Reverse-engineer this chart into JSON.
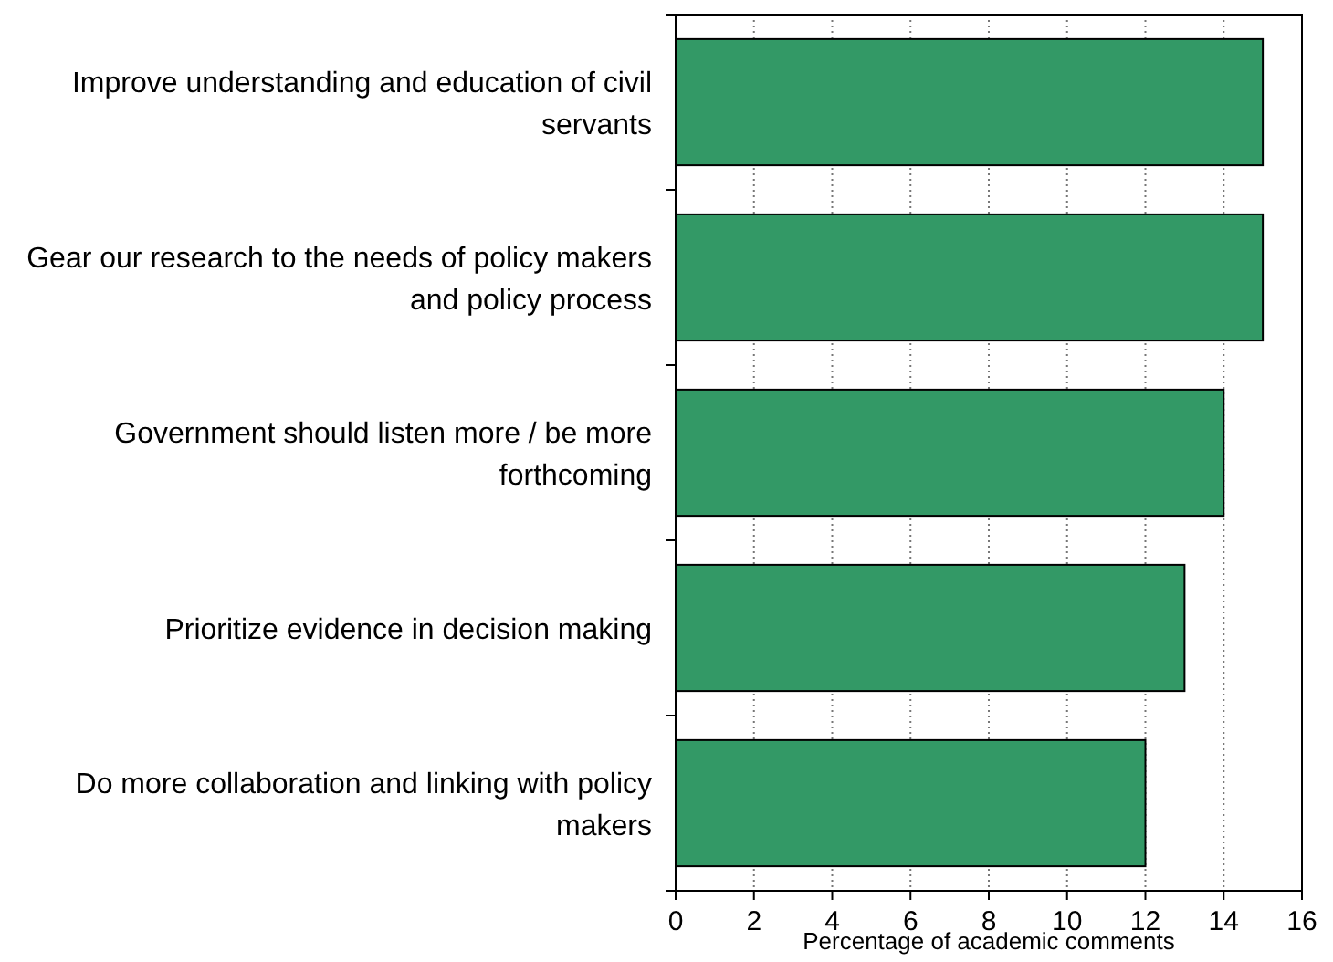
{
  "chart_data": {
    "type": "bar",
    "orientation": "horizontal",
    "xlabel": "Percentage of academic comments",
    "categories": [
      "Improve understanding and education of civil servants",
      "Gear our research to the needs of policy makers and policy process",
      "Government should listen more / be more forthcoming",
      "Prioritize evidence in decision making",
      "Do more collaboration and linking with policy makers"
    ],
    "values": [
      15,
      15,
      14,
      13,
      12
    ],
    "color": "#339966",
    "xlim": [
      0,
      16
    ],
    "xticks": [
      0,
      2,
      4,
      6,
      8,
      10,
      12,
      14,
      16
    ],
    "grid": "x"
  }
}
